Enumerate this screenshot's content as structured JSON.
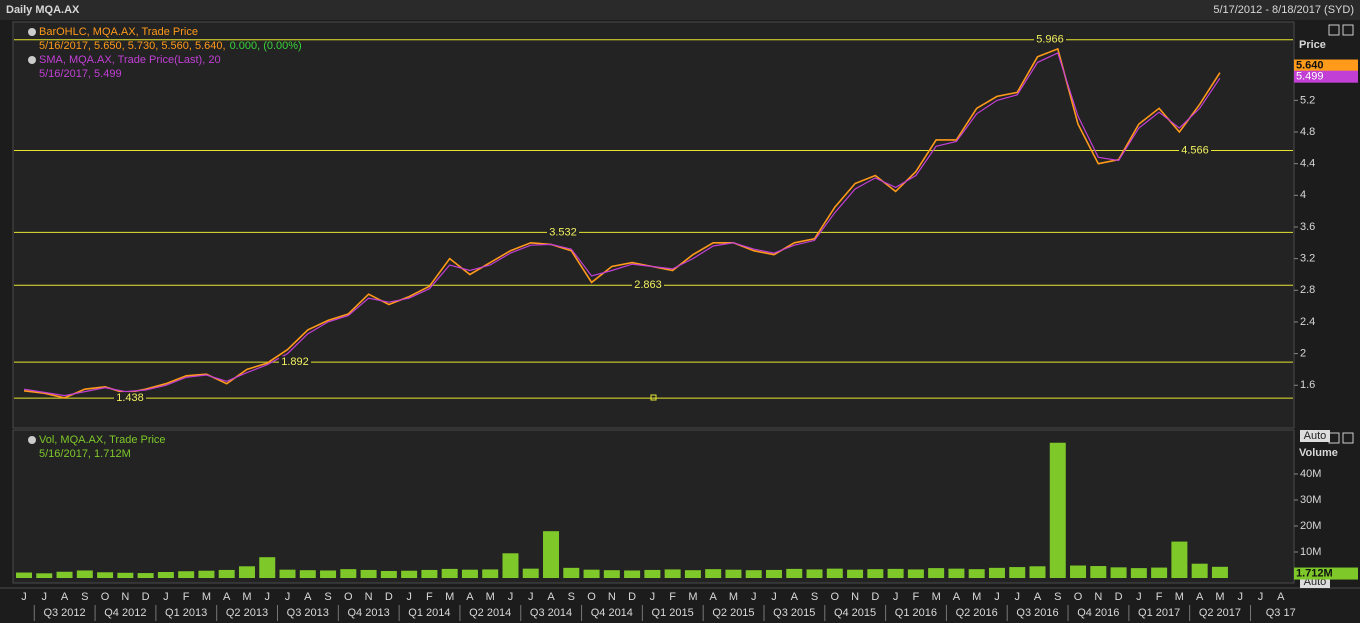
{
  "header": {
    "title": "Daily MQA.AX",
    "range": "5/17/2012 - 8/18/2017 (SYD)"
  },
  "chart_data": [
    {
      "type": "line",
      "axis_title": "Price",
      "series": [
        {
          "name": "BarOHLC, MQA.AX, Trade Price",
          "color": "#ff9a1a",
          "detail": "5/16/2017, 5.650, 5.730, 5.560, 5.640,",
          "detail_change": "0.000, (0.00%)",
          "last": {
            "value": 5.64,
            "label": "5.640"
          },
          "values": [
            1.53,
            1.5,
            1.44,
            1.55,
            1.58,
            1.5,
            1.55,
            1.62,
            1.72,
            1.74,
            1.62,
            1.8,
            1.88,
            2.05,
            2.3,
            2.42,
            2.5,
            2.75,
            2.62,
            2.72,
            2.85,
            3.2,
            3.0,
            3.15,
            3.3,
            3.4,
            3.38,
            3.3,
            2.9,
            3.1,
            3.15,
            3.1,
            3.05,
            3.25,
            3.4,
            3.4,
            3.3,
            3.25,
            3.4,
            3.45,
            3.85,
            4.15,
            4.25,
            4.05,
            4.3,
            4.7,
            4.7,
            5.1,
            5.25,
            5.3,
            5.75,
            5.85,
            4.9,
            4.4,
            4.45,
            4.9,
            5.1,
            4.8,
            5.15,
            5.55,
            null,
            null,
            null
          ]
        },
        {
          "name": "SMA, MQA.AX, Trade Price(Last),  20",
          "color": "#c23fd6",
          "detail": "5/16/2017, 5.499",
          "last": {
            "value": 5.499,
            "label": "5.499"
          },
          "values": [
            1.55,
            1.51,
            1.47,
            1.52,
            1.57,
            1.52,
            1.54,
            1.6,
            1.7,
            1.73,
            1.65,
            1.76,
            1.86,
            2.0,
            2.25,
            2.4,
            2.48,
            2.7,
            2.65,
            2.7,
            2.82,
            3.12,
            3.05,
            3.12,
            3.27,
            3.37,
            3.38,
            3.32,
            2.98,
            3.05,
            3.13,
            3.1,
            3.07,
            3.2,
            3.36,
            3.4,
            3.32,
            3.27,
            3.37,
            3.43,
            3.78,
            4.08,
            4.22,
            4.1,
            4.25,
            4.62,
            4.68,
            5.03,
            5.2,
            5.27,
            5.68,
            5.8,
            5.0,
            4.48,
            4.44,
            4.85,
            5.05,
            4.85,
            5.1,
            5.48,
            null,
            null,
            null
          ]
        }
      ],
      "levels": [
        1.438,
        1.892,
        2.863,
        3.532,
        4.566,
        5.966
      ],
      "level_color": "#e6e632",
      "ylim": [
        1.06,
        6.19
      ],
      "yticks": [
        1.6,
        2,
        2.4,
        2.8,
        3.2,
        3.6,
        4,
        4.4,
        4.8,
        5.2
      ],
      "scale_button": "Auto"
    },
    {
      "type": "bar",
      "axis_title": "Volume",
      "series": [
        {
          "name": "Vol, MQA.AX, Trade Price",
          "color": "#7ec82a",
          "detail": "5/16/2017, 1.712M",
          "last": {
            "value": 1712000,
            "label": "1.712M"
          },
          "values": [
            2100000,
            1800000,
            2400000,
            2900000,
            2200000,
            2000000,
            1900000,
            2300000,
            2600000,
            2800000,
            3100000,
            4500000,
            8000000,
            3200000,
            3000000,
            2900000,
            3400000,
            3100000,
            2700000,
            2800000,
            3100000,
            3500000,
            3200000,
            3300000,
            9500000,
            3600000,
            18000000,
            3900000,
            3200000,
            3000000,
            2900000,
            3100000,
            3300000,
            3000000,
            3400000,
            3200000,
            3000000,
            3100000,
            3500000,
            3300000,
            3600000,
            3200000,
            3400000,
            3500000,
            3300000,
            3800000,
            3600000,
            3400000,
            3900000,
            4200000,
            4500000,
            52000000,
            4800000,
            4600000,
            4100000,
            3800000,
            4000000,
            14000000,
            5500000,
            4300000,
            null,
            null,
            null
          ]
        }
      ],
      "ylim": [
        0,
        56900000
      ],
      "yticks": [
        {
          "value": 10000000,
          "label": "10M"
        },
        {
          "value": 20000000,
          "label": "20M"
        },
        {
          "value": 30000000,
          "label": "30M"
        },
        {
          "value": 40000000,
          "label": "40M"
        }
      ],
      "scale_button": "Auto",
      "categories": [
        "J",
        "J",
        "A",
        "S",
        "O",
        "N",
        "D",
        "J",
        "F",
        "M",
        "A",
        "M",
        "J",
        "J",
        "A",
        "S",
        "O",
        "N",
        "D",
        "J",
        "F",
        "M",
        "A",
        "M",
        "J",
        "J",
        "A",
        "S",
        "O",
        "N",
        "D",
        "J",
        "F",
        "M",
        "A",
        "M",
        "J",
        "J",
        "A",
        "S",
        "O",
        "N",
        "D",
        "J",
        "F",
        "M",
        "A",
        "M",
        "J",
        "J",
        "A",
        "S",
        "O",
        "N",
        "D",
        "J",
        "F",
        "M",
        "A",
        "M",
        "J",
        "J",
        "A"
      ],
      "quarters": [
        "Q3 2012",
        "Q4 2012",
        "Q1 2013",
        "Q2 2013",
        "Q3 2013",
        "Q4 2013",
        "Q1 2014",
        "Q2 2014",
        "Q3 2014",
        "Q4 2014",
        "Q1 2015",
        "Q2 2015",
        "Q3 2015",
        "Q4 2015",
        "Q1 2016",
        "Q2 2016",
        "Q3 2016",
        "Q4 2016",
        "Q1 2017",
        "Q2 2017",
        "Q3 17"
      ]
    }
  ]
}
